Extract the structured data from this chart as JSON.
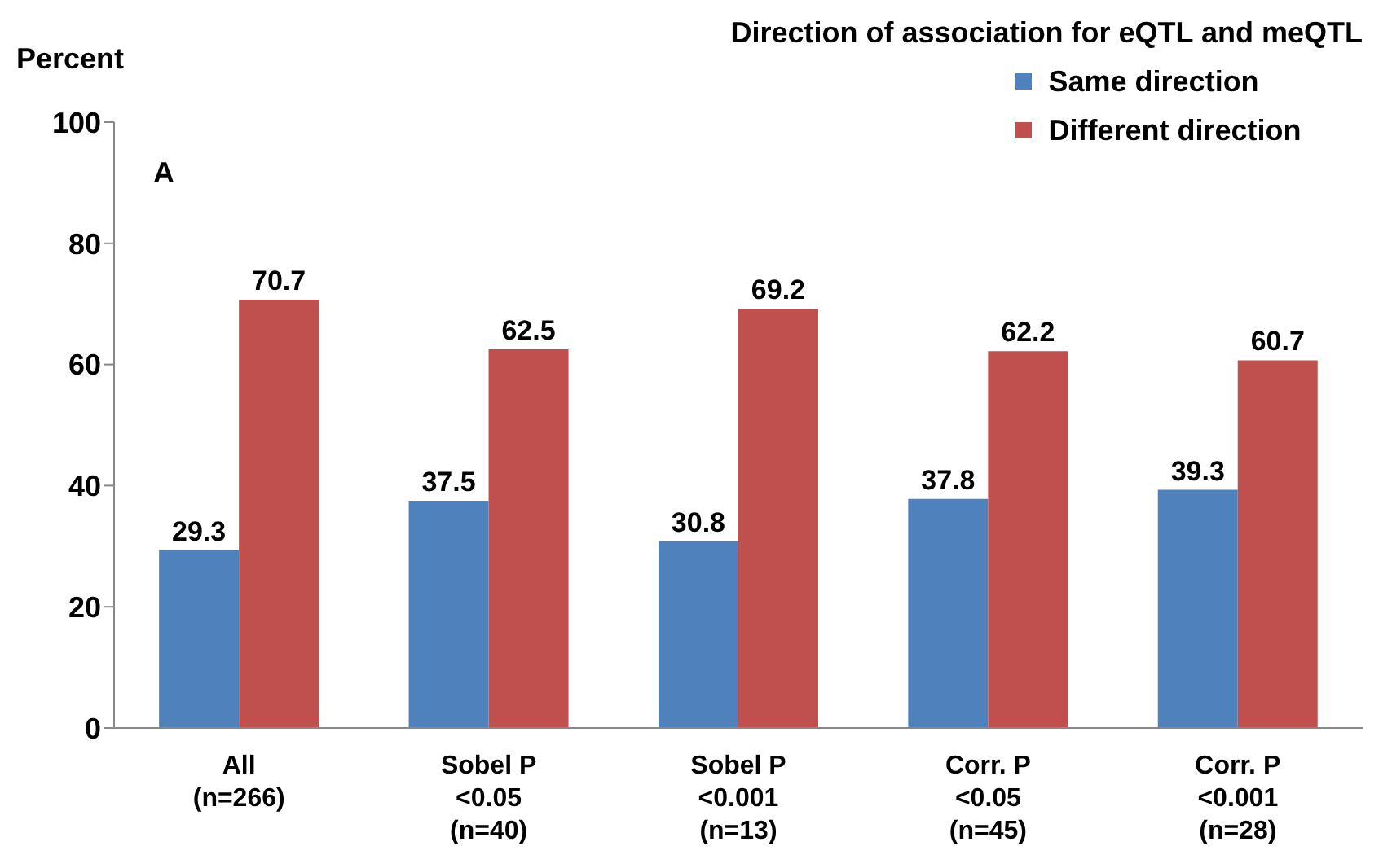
{
  "chart_data": {
    "type": "bar",
    "ylabel": "Percent",
    "legend_title": "Direction of association for eQTL and meQTL",
    "annotations": [
      "A"
    ],
    "categories": [
      "All\n(n=266)",
      "Sobel P\n<0.05\n(n=40)",
      "Sobel P\n<0.001\n(n=13)",
      "Corr. P\n<0.05\n(n=45)",
      "Corr. P\n<0.001\n(n=28)"
    ],
    "series": [
      {
        "name": "Same direction",
        "color": "#4f81bd",
        "values": [
          29.3,
          37.5,
          30.8,
          37.8,
          39.3
        ]
      },
      {
        "name": "Different direction",
        "color": "#c0504d",
        "values": [
          70.7,
          62.5,
          69.2,
          62.2,
          60.7
        ]
      }
    ],
    "ylim": [
      0,
      100
    ],
    "yticks": [
      0,
      20,
      40,
      60,
      80,
      100
    ],
    "grid": false,
    "legend": "top right",
    "data_labels": true
  }
}
